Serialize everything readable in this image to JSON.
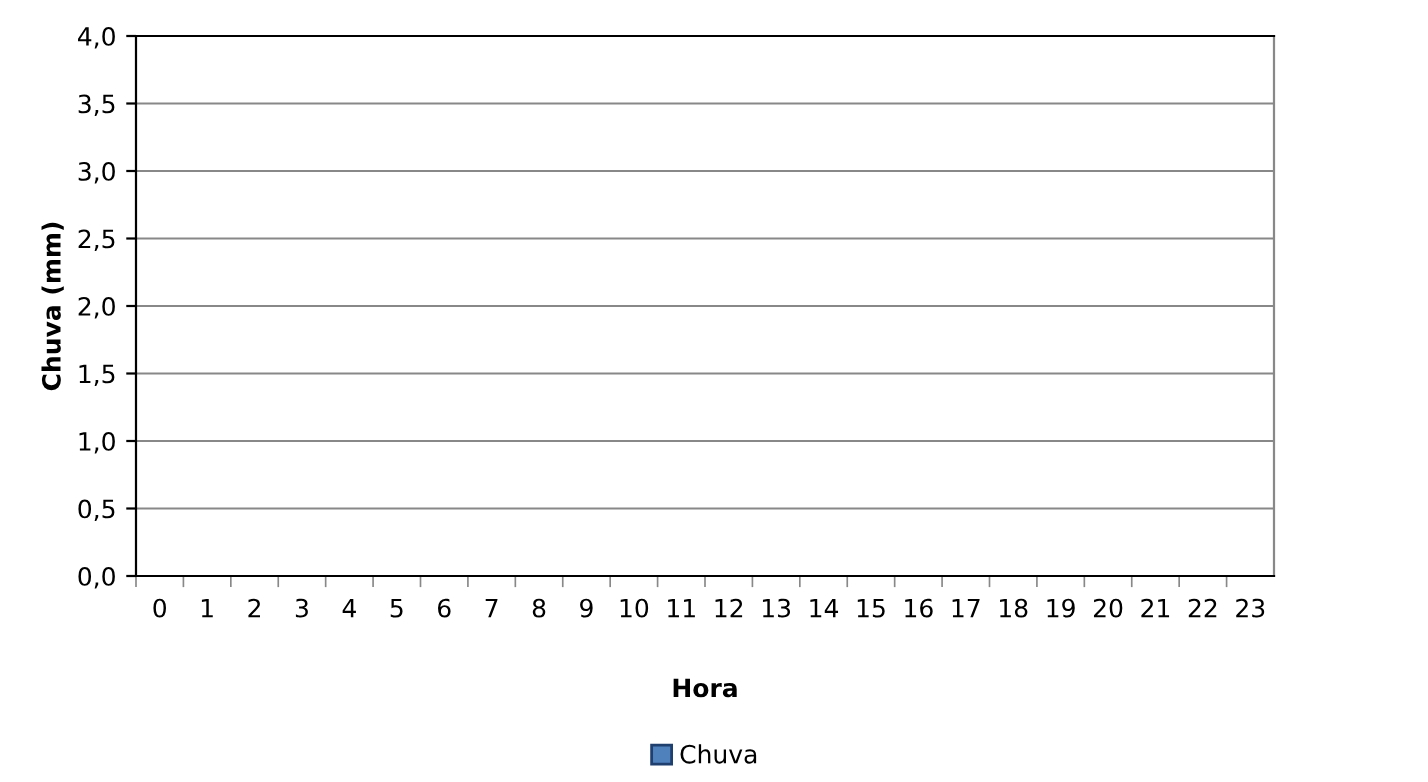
{
  "chart_data": {
    "type": "bar",
    "xlabel": "Hora",
    "ylabel": "Chuva (mm)",
    "categories": [
      "0",
      "1",
      "2",
      "3",
      "4",
      "5",
      "6",
      "7",
      "8",
      "9",
      "10",
      "11",
      "12",
      "13",
      "14",
      "15",
      "16",
      "17",
      "18",
      "19",
      "20",
      "21",
      "22",
      "23"
    ],
    "series": [
      {
        "name": "Chuva",
        "color": "#4f81bd",
        "values": [
          0,
          0,
          0,
          0,
          0,
          0,
          0,
          0,
          0,
          0,
          0,
          0,
          0,
          0,
          0,
          0,
          0,
          0,
          0,
          0,
          0,
          0,
          0,
          0
        ]
      }
    ],
    "ylim": [
      0,
      4
    ],
    "yticks": [
      {
        "value": 0,
        "label": "0,0"
      },
      {
        "value": 0.5,
        "label": "0,5"
      },
      {
        "value": 1,
        "label": "1,0"
      },
      {
        "value": 1.5,
        "label": "1,5"
      },
      {
        "value": 2,
        "label": "2,0"
      },
      {
        "value": 2.5,
        "label": "2,5"
      },
      {
        "value": 3,
        "label": "3,0"
      },
      {
        "value": 3.5,
        "label": "3,5"
      },
      {
        "value": 4,
        "label": "4,0"
      }
    ],
    "grid": "y",
    "legend": "bottom"
  }
}
